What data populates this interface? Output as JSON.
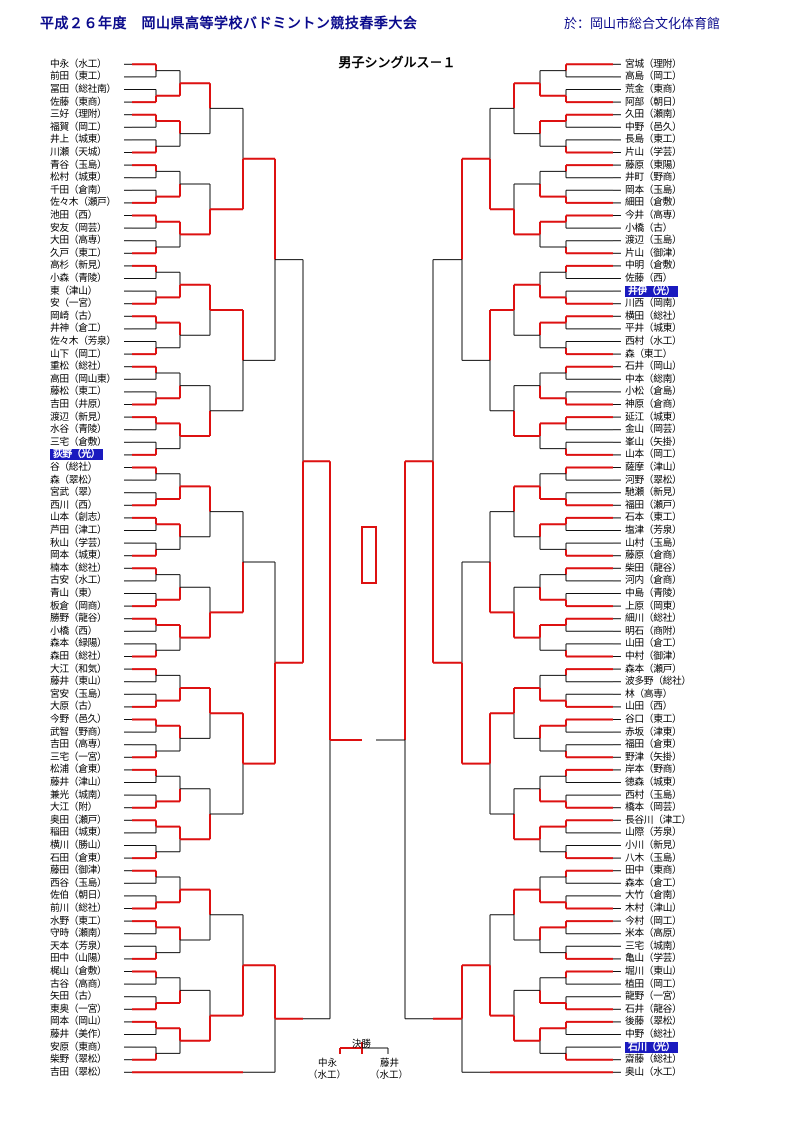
{
  "header": {
    "title": "平成２６年度　岡山県高等学校バドミントン競技春季大会",
    "venue": "於：岡山市総合文化体育館"
  },
  "event_title": "男子シングルス－１",
  "left_players": [
    "中永（水工）",
    "前田（東工）",
    "冨田（総社南）",
    "佐藤（東商）",
    "三好（理附）",
    "福賀（岡工）",
    "井上（城東）",
    "川瀬（天城）",
    "青谷（玉島）",
    "松村（城東）",
    "千田（倉南）",
    "佐々木（瀬戸）",
    "池田（西）",
    "安友（岡芸）",
    "大田（高専）",
    "久戸（東工）",
    "高杉（新見）",
    "小森（青陵）",
    "東（津山）",
    "安（一宮）",
    "岡崎（古）",
    "井神（倉工）",
    "佐々木（芳泉）",
    "山下（岡工）",
    "重松（総社）",
    "高田（岡山東）",
    "藤松（東工）",
    "吉田（井原）",
    "渡辺（新見）",
    "水谷（青陵）",
    "三宅（倉敷）",
    "荻野（光）",
    "谷（総社）",
    "森（翠松）",
    "宮武（翠）",
    "西川（西）",
    "山本（創志）",
    "芦田（津工）",
    "秋山（学芸）",
    "岡本（城東）",
    "楠本（総社）",
    "古安（水工）",
    "青山（東）",
    "板倉（岡商）",
    "勝野（龍谷）",
    "小橋（西）",
    "森本（緑陽）",
    "森田（総社）",
    "大江（和気）",
    "藤井（東山）",
    "宮安（玉島）",
    "大原（古）",
    "今野（邑久）",
    "武智（野商）",
    "吉田（高専）",
    "三宅（一宮）",
    "松浦（倉東）",
    "藤井（津山）",
    "兼光（城南）",
    "大江（附）",
    "奥田（瀬戸）",
    "稲田（城東）",
    "横川（勝山）",
    "石田（倉東）",
    "藤田（御津）",
    "西谷（玉島）",
    "佐伯（朝日）",
    "前川（総社）",
    "水野（東工）",
    "守時（瀬南）",
    "天本（芳泉）",
    "田中（山陽）",
    "梶山（倉敷）",
    "古谷（高商）",
    "矢田（古）",
    "東奥（一宮）",
    "岡本（岡山）",
    "藤井（美作）",
    "安原（東商）",
    "柴野（翠松）",
    "吉田（翠松）"
  ],
  "right_players": [
    "宮城（理附）",
    "高島（岡工）",
    "荒金（東商）",
    "阿部（朝日）",
    "久田（瀬南）",
    "中野（邑久）",
    "長島（東工）",
    "片山（学芸）",
    "藤原（東陽）",
    "井町（野商）",
    "岡本（玉島）",
    "細田（倉敷）",
    "今井（高専）",
    "小橋（古）",
    "渡辺（玉島）",
    "片山（御津）",
    "中明（倉敷）",
    "佐藤（西）",
    "井伊（光）",
    "川西（岡南）",
    "横田（総社）",
    "平井（城東）",
    "西村（水工）",
    "森（東工）",
    "石井（岡山）",
    "中本（総南）",
    "小松（倉島）",
    "神原（倉商）",
    "延江（城東）",
    "金山（岡芸）",
    "峯山（矢掛）",
    "山本（岡工）",
    "薩摩（津山）",
    "河野（翠松）",
    "馳瀬（新見）",
    "福田（瀬戸）",
    "石本（東工）",
    "塩津（芳泉）",
    "山村（玉島）",
    "藤原（倉商）",
    "柴田（龍谷）",
    "河内（倉商）",
    "中島（青陵）",
    "上原（岡東）",
    "細川（総社）",
    "明石（商附）",
    "山田（倉工）",
    "中村（御津）",
    "森本（瀬戸）",
    "波多野（総社）",
    "林（高専）",
    "山田（西）",
    "谷口（東工）",
    "赤坂（津東）",
    "福田（倉東）",
    "野津（矢掛）",
    "岸本（野商）",
    "徳森（城東）",
    "西村（玉島）",
    "橋本（岡芸）",
    "長谷川（津工）",
    "山際（芳泉）",
    "小川（新見）",
    "八木（玉島）",
    "田中（東商）",
    "森本（倉工）",
    "大竹（倉南）",
    "木村（津山）",
    "今村（岡工）",
    "米本（高原）",
    "三宅（城南）",
    "亀山（学芸）",
    "堀川（東山）",
    "植田（岡工）",
    "龍野（一宮）",
    "石井（龍谷）",
    "後藤（翠松）",
    "中野（総社）",
    "石川（光）",
    "齋藤（総社）",
    "奥山（水工）"
  ],
  "highlighted": [
    "荻野（光）",
    "井伊（光）",
    "石川（光）"
  ],
  "final": {
    "label": "決勝",
    "left_name": "中永",
    "left_school": "（水工）",
    "right_name": "藤井",
    "right_school": "（水工）"
  },
  "colors": {
    "winner_line": "#dd1111",
    "bracket_line": "#111111",
    "header_text": "#0a0a8c",
    "highlight_bg": "#1a1abf"
  }
}
